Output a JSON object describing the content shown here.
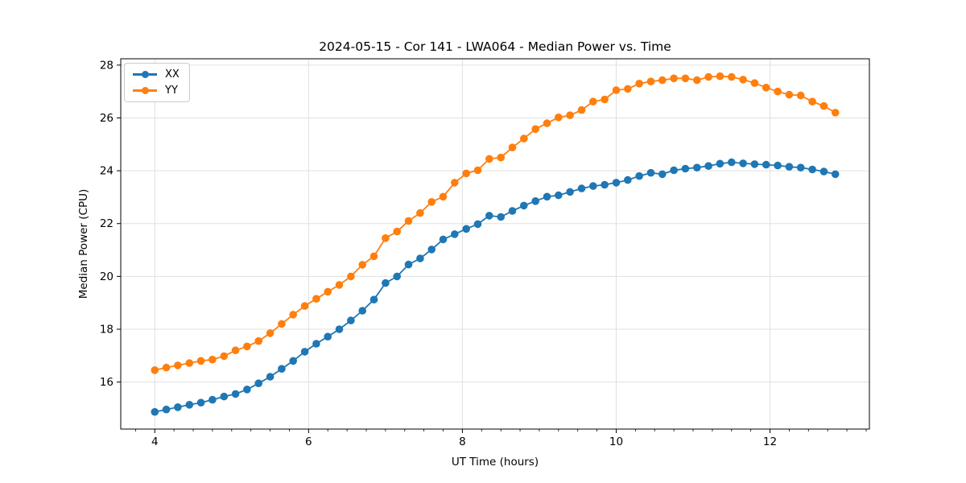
{
  "title": "2024-05-15 - Cor 141 - LWA064 - Median Power vs. Time",
  "chart_data": {
    "type": "line",
    "title": "2024-05-15 - Cor 141 - LWA064 - Median Power vs. Time",
    "xlabel": "UT Time (hours)",
    "ylabel": "Median Power (CPU)",
    "xlim": [
      3.5575,
      13.2925
    ],
    "ylim": [
      14.22,
      28.24
    ],
    "xticks": [
      4,
      6,
      8,
      10,
      12
    ],
    "yticks": [
      16,
      18,
      20,
      22,
      24,
      26,
      28
    ],
    "x_minor_step": 0.25,
    "grid": true,
    "grid_color": "#e0e0e0",
    "legend_position": "upper left",
    "x": [
      4.0,
      4.15,
      4.3,
      4.45,
      4.6,
      4.75,
      4.9,
      5.05,
      5.2,
      5.35,
      5.5,
      5.65,
      5.8,
      5.95,
      6.1,
      6.25,
      6.4,
      6.55,
      6.7,
      6.85,
      7.0,
      7.15,
      7.3,
      7.45,
      7.6,
      7.75,
      7.9,
      8.05,
      8.2,
      8.35,
      8.5,
      8.65,
      8.8,
      8.95,
      9.1,
      9.25,
      9.4,
      9.55,
      9.7,
      9.85,
      10.0,
      10.15,
      10.3,
      10.45,
      10.6,
      10.75,
      10.9,
      11.05,
      11.2,
      11.35,
      11.5,
      11.65,
      11.8,
      11.95,
      12.1,
      12.25,
      12.4,
      12.55,
      12.7,
      12.85
    ],
    "series": [
      {
        "name": "XX",
        "color": "#1f77b4",
        "values": [
          14.87,
          14.96,
          15.05,
          15.14,
          15.22,
          15.33,
          15.45,
          15.55,
          15.72,
          15.95,
          16.2,
          16.5,
          16.8,
          17.15,
          17.45,
          17.72,
          18.0,
          18.33,
          18.7,
          19.12,
          19.75,
          20.0,
          20.45,
          20.68,
          21.02,
          21.4,
          21.6,
          21.8,
          21.98,
          22.3,
          22.25,
          22.48,
          22.68,
          22.85,
          23.02,
          23.07,
          23.2,
          23.33,
          23.42,
          23.47,
          23.55,
          23.65,
          23.8,
          23.92,
          23.87,
          24.02,
          24.08,
          24.12,
          24.18,
          24.27,
          24.32,
          24.28,
          24.25,
          24.23,
          24.2,
          24.15,
          24.12,
          24.05,
          23.97,
          23.87
        ]
      },
      {
        "name": "YY",
        "color": "#ff7f0e",
        "values": [
          16.45,
          16.55,
          16.63,
          16.72,
          16.8,
          16.85,
          16.98,
          17.2,
          17.35,
          17.55,
          17.85,
          18.2,
          18.55,
          18.88,
          19.15,
          19.42,
          19.68,
          20.0,
          20.44,
          20.76,
          21.45,
          21.7,
          22.1,
          22.4,
          22.82,
          23.02,
          23.55,
          23.9,
          24.02,
          24.45,
          24.5,
          24.88,
          25.22,
          25.58,
          25.8,
          26.02,
          26.1,
          26.3,
          26.62,
          26.7,
          27.05,
          27.1,
          27.3,
          27.38,
          27.43,
          27.5,
          27.5,
          27.43,
          27.55,
          27.58,
          27.55,
          27.45,
          27.32,
          27.15,
          27.0,
          26.88,
          26.85,
          26.62,
          26.45,
          26.2
        ]
      }
    ]
  }
}
